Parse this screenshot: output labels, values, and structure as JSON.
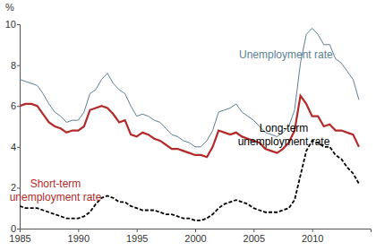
{
  "chart_data": {
    "type": "line",
    "y_label": "%",
    "x": [
      1985,
      1985.5,
      1986,
      1986.5,
      1987,
      1987.5,
      1988,
      1988.5,
      1989,
      1989.5,
      1990,
      1990.5,
      1991,
      1991.5,
      1992,
      1992.5,
      1993,
      1993.5,
      1994,
      1994.5,
      1995,
      1995.5,
      1996,
      1996.5,
      1997,
      1997.5,
      1998,
      1998.5,
      1999,
      1999.5,
      2000,
      2000.5,
      2001,
      2001.5,
      2002,
      2002.5,
      2003,
      2003.5,
      2004,
      2004.5,
      2005,
      2005.5,
      2006,
      2006.5,
      2007,
      2007.5,
      2008,
      2008.5,
      2009,
      2009.5,
      2010,
      2010.5,
      2011,
      2011.5,
      2012,
      2012.5,
      2013,
      2013.5,
      2014
    ],
    "series": [
      {
        "name": "Unemployment rate",
        "color": "#5b7f95",
        "line_style": "solid",
        "values": [
          7.3,
          7.2,
          7.1,
          7.0,
          6.6,
          6.1,
          5.7,
          5.5,
          5.2,
          5.3,
          5.3,
          5.7,
          6.6,
          6.8,
          7.3,
          7.6,
          7.1,
          6.8,
          6.6,
          6.0,
          5.5,
          5.6,
          5.5,
          5.3,
          5.2,
          4.9,
          4.6,
          4.5,
          4.3,
          4.2,
          4.0,
          4.0,
          4.3,
          4.8,
          5.7,
          5.8,
          5.9,
          6.1,
          5.7,
          5.5,
          5.3,
          5.0,
          4.7,
          4.6,
          4.5,
          4.7,
          5.0,
          5.8,
          8.1,
          9.5,
          9.8,
          9.5,
          9.0,
          9.0,
          8.3,
          8.1,
          7.7,
          7.3,
          6.3
        ]
      },
      {
        "name": "Short-term unemployment rate",
        "color": "#b22a2a",
        "line_style": "solid",
        "values": [
          6.0,
          6.1,
          6.1,
          6.0,
          5.6,
          5.2,
          5.0,
          4.9,
          4.7,
          4.8,
          4.8,
          5.0,
          5.8,
          5.9,
          6.0,
          5.9,
          5.6,
          5.2,
          5.3,
          4.6,
          4.5,
          4.7,
          4.6,
          4.4,
          4.3,
          4.1,
          3.9,
          3.9,
          3.8,
          3.7,
          3.6,
          3.6,
          3.5,
          4.0,
          4.8,
          4.7,
          4.6,
          4.7,
          4.5,
          4.4,
          4.3,
          4.2,
          3.9,
          3.8,
          3.7,
          3.9,
          4.2,
          4.8,
          6.5,
          6.1,
          5.5,
          5.5,
          5.0,
          5.1,
          4.8,
          4.8,
          4.7,
          4.6,
          4.0
        ]
      },
      {
        "name": "Long-term unemployment rate",
        "color": "#000000",
        "line_style": "dashed",
        "values": [
          1.1,
          1.0,
          1.0,
          1.0,
          0.9,
          0.8,
          0.7,
          0.6,
          0.5,
          0.5,
          0.5,
          0.6,
          0.8,
          1.2,
          1.5,
          1.6,
          1.5,
          1.3,
          1.3,
          1.1,
          1.0,
          0.9,
          0.9,
          0.9,
          0.8,
          0.7,
          0.7,
          0.6,
          0.5,
          0.5,
          0.4,
          0.4,
          0.5,
          0.7,
          1.0,
          1.2,
          1.3,
          1.4,
          1.3,
          1.2,
          1.0,
          0.9,
          0.8,
          0.8,
          0.8,
          0.9,
          1.0,
          1.4,
          2.6,
          3.8,
          4.3,
          4.2,
          4.0,
          4.0,
          3.6,
          3.4,
          3.0,
          2.7,
          2.2
        ]
      }
    ],
    "xlim": [
      1985,
      2015
    ],
    "xticks": [
      1985,
      1990,
      1995,
      2000,
      2005,
      2010
    ],
    "ylim": [
      0,
      10
    ],
    "yticks": [
      0,
      2,
      4,
      6,
      8,
      10
    ],
    "grid": false
  }
}
